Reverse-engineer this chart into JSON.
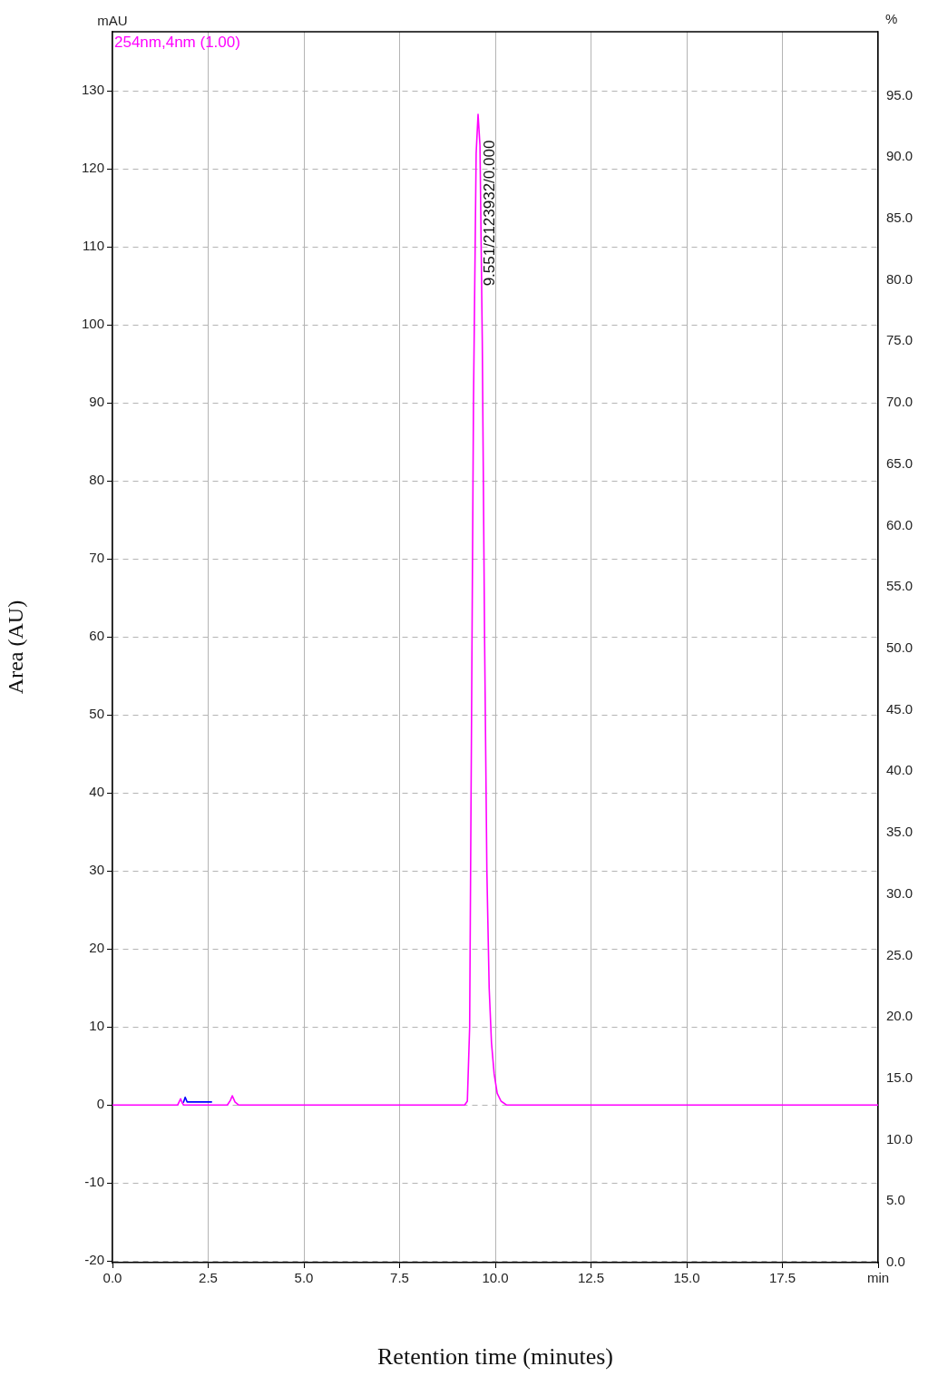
{
  "chart_data": {
    "type": "line",
    "xlabel": "Retention time (minutes)",
    "ylabel": "Area (AU)",
    "y2label": "%",
    "annotations": [
      "mAU",
      {
        "text": "9.551/2123932/0.000",
        "x": 9.551,
        "y": 105
      }
    ],
    "series": [
      {
        "name": "254nm,4nm (1.00)",
        "color": "#ff00ff",
        "x": [
          0,
          1.7,
          1.78,
          1.82,
          1.86,
          3.0,
          3.08,
          3.13,
          3.2,
          3.3,
          9.2,
          9.27,
          9.33,
          9.43,
          9.5,
          9.55,
          9.6,
          9.66,
          9.72,
          9.78,
          9.84,
          9.9,
          9.97,
          10.05,
          10.15,
          10.3,
          20
        ],
        "values": [
          0,
          0,
          0.8,
          0.3,
          0,
          0,
          0.6,
          1.2,
          0.4,
          0,
          0,
          0.5,
          10,
          90,
          122,
          127,
          123,
          98,
          60,
          30,
          15,
          8,
          4,
          1.5,
          0.5,
          0,
          0
        ]
      },
      {
        "color": "#0000ff",
        "x": [
          1.85,
          1.9,
          1.95,
          2.6
        ],
        "values": [
          0.3,
          1.0,
          0.4,
          0.4
        ]
      }
    ],
    "xlim": [
      0,
      20
    ],
    "ylim": [
      -20.2,
      137.6
    ],
    "y2lim": [
      0,
      100.2
    ],
    "xticks": [
      {
        "value": 0,
        "label": "0.0"
      },
      {
        "value": 2.5,
        "label": "2.5"
      },
      {
        "value": 5,
        "label": "5.0"
      },
      {
        "value": 7.5,
        "label": "7.5"
      },
      {
        "value": 10,
        "label": "10.0"
      },
      {
        "value": 12.5,
        "label": "12.5"
      },
      {
        "value": 15,
        "label": "15.0"
      },
      {
        "value": 17.5,
        "label": "17.5"
      },
      {
        "value": 20,
        "label": "min"
      }
    ],
    "yticks": [
      -20,
      -10,
      0,
      10,
      20,
      30,
      40,
      50,
      60,
      70,
      80,
      90,
      100,
      110,
      120,
      130
    ],
    "y2ticks": [
      {
        "value": 0,
        "label": "0.0"
      },
      {
        "value": 5,
        "label": "5.0"
      },
      {
        "value": 10,
        "label": "10.0"
      },
      {
        "value": 15,
        "label": "15.0"
      },
      {
        "value": 20,
        "label": "20.0"
      },
      {
        "value": 25,
        "label": "25.0"
      },
      {
        "value": 30,
        "label": "30.0"
      },
      {
        "value": 35,
        "label": "35.0"
      },
      {
        "value": 40,
        "label": "40.0"
      },
      {
        "value": 45,
        "label": "45.0"
      },
      {
        "value": 50,
        "label": "50.0"
      },
      {
        "value": 55,
        "label": "55.0"
      },
      {
        "value": 60,
        "label": "60.0"
      },
      {
        "value": 65,
        "label": "65.0"
      },
      {
        "value": 70,
        "label": "70.0"
      },
      {
        "value": 75,
        "label": "75.0"
      },
      {
        "value": 80,
        "label": "80.0"
      },
      {
        "value": 85,
        "label": "85.0"
      },
      {
        "value": 90,
        "label": "90.0"
      },
      {
        "value": 95,
        "label": "95.0"
      }
    ],
    "grid": true,
    "legend": "top left",
    "line_style": "solid"
  }
}
